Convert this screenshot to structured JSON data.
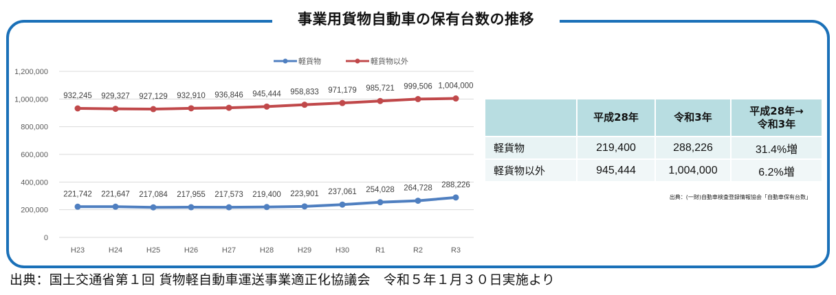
{
  "title": "事業用貨物自動車の保有台数の推移",
  "colors": {
    "frame": "#1a70b8",
    "series_light": "#4f7fc0",
    "series_other": "#c0484a",
    "table_header": "#b8dde1",
    "table_row1": "#e8f3f4",
    "table_row2": "#f1f7f8"
  },
  "legend": {
    "items": [
      {
        "label": "軽貨物",
        "color": "#4f7fc0"
      },
      {
        "label": "軽貨物以外",
        "color": "#c0484a"
      }
    ]
  },
  "chart_data": {
    "type": "line",
    "title": "事業用貨物自動車の保有台数の推移",
    "xlabel": "",
    "ylabel": "",
    "categories": [
      "H23",
      "H24",
      "H25",
      "H26",
      "H27",
      "H28",
      "H29",
      "H30",
      "R1",
      "R2",
      "R3"
    ],
    "series": [
      {
        "name": "軽貨物",
        "color": "#4f7fc0",
        "values": [
          221742,
          221647,
          217084,
          217955,
          217573,
          219400,
          223901,
          237061,
          254028,
          264728,
          288226
        ],
        "labels": [
          "221,742",
          "221,647",
          "217,084",
          "217,955",
          "217,573",
          "219,400",
          "223,901",
          "237,061",
          "254,028",
          "264,728",
          "288,226"
        ]
      },
      {
        "name": "軽貨物以外",
        "color": "#c0484a",
        "values": [
          932245,
          929327,
          927129,
          932910,
          936846,
          945444,
          958833,
          971179,
          985721,
          999506,
          1004000
        ],
        "labels": [
          "932,245",
          "929,327",
          "927,129",
          "932,910",
          "936,846",
          "945,444",
          "958,833",
          "971,179",
          "985,721",
          "999,506",
          "1,004,000"
        ]
      }
    ],
    "yticks": [
      "0",
      "200,000",
      "400,000",
      "600,000",
      "800,000",
      "1,000,000",
      "1,200,000"
    ],
    "ylim": [
      0,
      1200000
    ],
    "grid": true,
    "legend_position": "top"
  },
  "table": {
    "headers": [
      "",
      "平成28年",
      "令和3年",
      "平成28年→",
      "令和3年"
    ],
    "header_col3_line1": "平成28年→",
    "header_col3_line2": "令和3年",
    "rows": [
      {
        "label": "軽貨物",
        "h28": "219,400",
        "r3": "288,226",
        "change": "31.4%増"
      },
      {
        "label": "軽貨物以外",
        "h28": "945,444",
        "r3": "1,004,000",
        "change": "6.2%増"
      }
    ]
  },
  "source_inner": "出典：(一財)自動車検査登録情報協会「自動車保有台数」",
  "source_outer": "出典：国土交通省第１回 貨物軽自動車運送事業適正化協議会　令和５年１月３０日実施より"
}
